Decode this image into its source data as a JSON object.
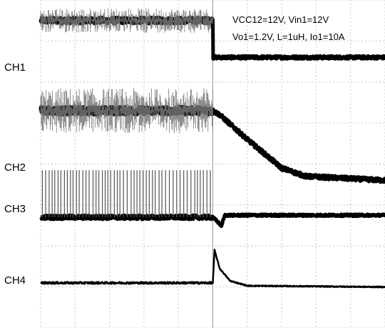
{
  "chart_data": {
    "type": "line",
    "title": "",
    "annotations": [
      "VCC12=12V, Vin1=12V",
      "Vo1=1.2V, L=1uH, Io1=10A"
    ],
    "grid": true,
    "grid_divisions": {
      "x": 10,
      "y": 8
    },
    "trigger_division": 5,
    "channels": [
      {
        "name": "CH1",
        "description": "input enable / high level drops at trigger",
        "points": [
          [
            0,
            7.5
          ],
          [
            5,
            7.5
          ],
          [
            5,
            6.6
          ],
          [
            10,
            6.6
          ]
        ],
        "noise": 0.15
      },
      {
        "name": "CH2",
        "description": "switch node ramps down after trigger",
        "points": [
          [
            0,
            5.3
          ],
          [
            5,
            5.3
          ],
          [
            5.2,
            5.2
          ],
          [
            6,
            4.6
          ],
          [
            7,
            3.9
          ],
          [
            7.7,
            3.7
          ],
          [
            10,
            3.6
          ]
        ],
        "noise": 0.2
      },
      {
        "name": "CH3",
        "description": "PWM switching then steady high",
        "points": [
          [
            0,
            2.7
          ],
          [
            5,
            2.7
          ],
          [
            5.25,
            2.5
          ],
          [
            5.35,
            2.75
          ],
          [
            10,
            2.75
          ]
        ],
        "noise": 0.1,
        "pwm_before_trigger": true,
        "pwm_top": 3.85
      },
      {
        "name": "CH4",
        "description": "current spike then decay",
        "points": [
          [
            0,
            1.1
          ],
          [
            5,
            1.1
          ],
          [
            5.05,
            1.9
          ],
          [
            5.2,
            1.45
          ],
          [
            5.5,
            1.15
          ],
          [
            6,
            1.03
          ],
          [
            10,
            1.0
          ]
        ],
        "noise": 0.05
      }
    ]
  },
  "labels": {
    "ch1": "CH1",
    "ch2": "CH2",
    "ch3": "CH3",
    "ch4": "CH4",
    "line1": "VCC12=12V, Vin1=12V",
    "line2": "Vo1=1.2V, L=1uH, Io1=10A"
  }
}
